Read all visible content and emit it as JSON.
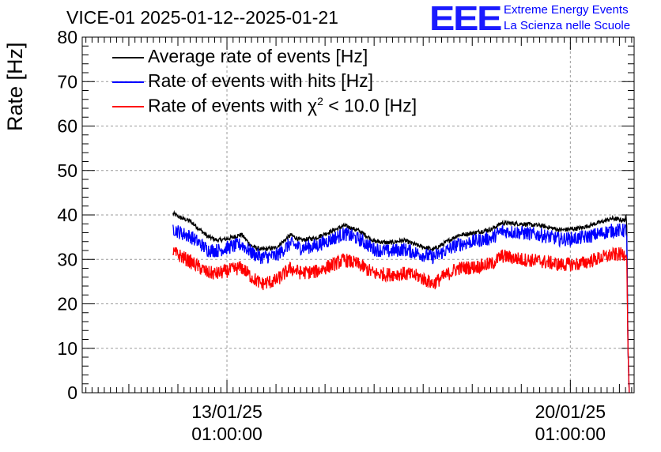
{
  "header": {
    "title": "VICE-01 2025-01-12--2025-01-21",
    "logo_text": "EEE",
    "logo_line1": "Extreme Energy Events",
    "logo_line2": "La Scienza nelle Scuole"
  },
  "chart_data": {
    "type": "line",
    "title": "VICE-01 2025-01-12--2025-01-21",
    "xlabel": "",
    "ylabel": "Rate [Hz]",
    "ylim": [
      0,
      80
    ],
    "xlim_days": [
      -2.95,
      8.3
    ],
    "grid": true,
    "legend_position": "top-left",
    "y_ticks": [
      0,
      10,
      20,
      30,
      40,
      50,
      60,
      70,
      80
    ],
    "x_ticks": [
      {
        "day": 0,
        "label_date": "13/01/25",
        "label_time": "01:00:00"
      },
      {
        "day": 7,
        "label_date": "20/01/25",
        "label_time": "01:00:00"
      }
    ],
    "x_units": "days since 13/01/25 01:00:00",
    "series": [
      {
        "name": "Average rate of events [Hz]",
        "color": "#000000",
        "noise": 0.5,
        "points": [
          [
            -1.1,
            40.3
          ],
          [
            -0.95,
            39.4
          ],
          [
            -0.75,
            38.6
          ],
          [
            -0.6,
            37.2
          ],
          [
            -0.4,
            35.2
          ],
          [
            -0.2,
            34.3
          ],
          [
            0.0,
            34.6
          ],
          [
            0.3,
            35.6
          ],
          [
            0.5,
            33.0
          ],
          [
            0.7,
            32.2
          ],
          [
            1.0,
            32.6
          ],
          [
            1.3,
            35.5
          ],
          [
            1.5,
            34.3
          ],
          [
            1.8,
            34.8
          ],
          [
            2.4,
            37.6
          ],
          [
            2.7,
            36.4
          ],
          [
            3.0,
            34.1
          ],
          [
            3.3,
            33.7
          ],
          [
            3.6,
            34.3
          ],
          [
            3.9,
            33.1
          ],
          [
            4.2,
            32.2
          ],
          [
            4.4,
            33.4
          ],
          [
            4.7,
            35.4
          ],
          [
            5.0,
            35.9
          ],
          [
            5.4,
            36.8
          ],
          [
            5.6,
            38.2
          ],
          [
            6.0,
            38.0
          ],
          [
            6.4,
            37.6
          ],
          [
            6.8,
            36.6
          ],
          [
            7.2,
            37.0
          ],
          [
            7.5,
            38.0
          ],
          [
            7.85,
            39.2
          ],
          [
            8.1,
            38.8
          ],
          [
            8.14,
            39.5
          ]
        ]
      },
      {
        "name": "Rate of events with hits [Hz]",
        "color": "#0000ff",
        "noise": 1.6,
        "points": [
          [
            -1.1,
            37.0
          ],
          [
            -0.95,
            36.0
          ],
          [
            -0.75,
            35.2
          ],
          [
            -0.6,
            34.0
          ],
          [
            -0.4,
            32.2
          ],
          [
            -0.2,
            32.0
          ],
          [
            0.0,
            32.6
          ],
          [
            0.3,
            33.4
          ],
          [
            0.5,
            31.5
          ],
          [
            0.7,
            30.5
          ],
          [
            1.0,
            30.8
          ],
          [
            1.3,
            33.6
          ],
          [
            1.5,
            32.6
          ],
          [
            1.8,
            33.0
          ],
          [
            2.4,
            35.8
          ],
          [
            2.7,
            34.5
          ],
          [
            3.0,
            32.3
          ],
          [
            3.3,
            31.8
          ],
          [
            3.6,
            32.3
          ],
          [
            3.9,
            31.3
          ],
          [
            4.2,
            30.5
          ],
          [
            4.4,
            31.6
          ],
          [
            4.7,
            33.3
          ],
          [
            5.0,
            34.0
          ],
          [
            5.4,
            34.8
          ],
          [
            5.6,
            36.4
          ],
          [
            6.0,
            36.0
          ],
          [
            6.4,
            35.5
          ],
          [
            6.8,
            34.5
          ],
          [
            7.2,
            34.8
          ],
          [
            7.5,
            35.5
          ],
          [
            7.85,
            36.5
          ],
          [
            8.1,
            36.5
          ],
          [
            8.14,
            37.0
          ]
        ]
      },
      {
        "name": "Rate of events with χ2 < 10.0 [Hz]",
        "label_main": "Rate of events with ",
        "label_chi": "χ",
        "label_sup": "2",
        "label_rest": " < 10.0 [Hz]",
        "color": "#ff0000",
        "noise": 1.6,
        "points": [
          [
            -1.1,
            31.5
          ],
          [
            -0.95,
            30.8
          ],
          [
            -0.75,
            29.5
          ],
          [
            -0.6,
            28.5
          ],
          [
            -0.4,
            27.0
          ],
          [
            -0.2,
            26.8
          ],
          [
            0.0,
            27.4
          ],
          [
            0.3,
            28.2
          ],
          [
            0.5,
            26.0
          ],
          [
            0.7,
            24.5
          ],
          [
            1.0,
            25.2
          ],
          [
            1.3,
            28.0
          ],
          [
            1.5,
            27.0
          ],
          [
            1.8,
            27.2
          ],
          [
            2.4,
            29.9
          ],
          [
            2.7,
            28.8
          ],
          [
            3.0,
            26.8
          ],
          [
            3.3,
            26.6
          ],
          [
            3.6,
            26.8
          ],
          [
            3.9,
            26.2
          ],
          [
            4.2,
            24.5
          ],
          [
            4.4,
            26.0
          ],
          [
            4.7,
            28.0
          ],
          [
            5.0,
            28.2
          ],
          [
            5.4,
            29.0
          ],
          [
            5.6,
            30.8
          ],
          [
            6.0,
            30.0
          ],
          [
            6.4,
            29.6
          ],
          [
            6.8,
            28.8
          ],
          [
            7.2,
            29.0
          ],
          [
            7.5,
            30.0
          ],
          [
            7.85,
            31.0
          ],
          [
            8.1,
            31.2
          ],
          [
            8.14,
            32.0
          ]
        ]
      }
    ],
    "dropoff": {
      "start_day": 8.15,
      "end_day": 8.2,
      "to_value": 0
    }
  }
}
